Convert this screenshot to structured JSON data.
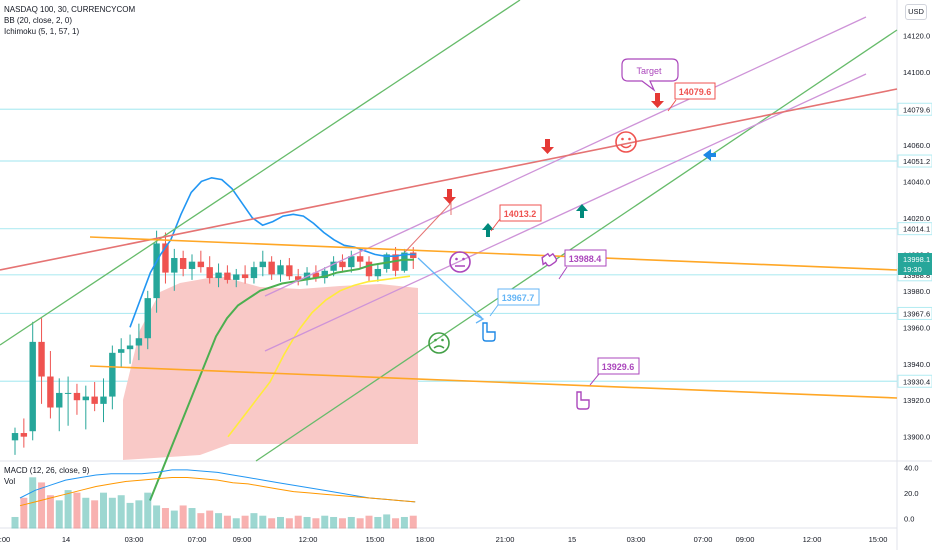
{
  "legend": {
    "symbol": "NASDAQ 100, 30, CURRENCYCOM",
    "bb": "BB (20, close, 2, 0)",
    "ichimoku": "Ichimoku (5, 1, 57, 1)",
    "macd": "MACD (12, 26, close, 9)",
    "vol": "Vol"
  },
  "currency_badge": "USD",
  "colors": {
    "up": "#26a69a",
    "down": "#ef5350",
    "cloud": "#f9c9c7",
    "bb_line": "#2196f3",
    "green_line": "#4caf50",
    "yellow_line": "#ffeb3b",
    "channel_green": "#66bb6a",
    "channel_violet": "#ce93d8",
    "red_line": "#e57373",
    "orange_line": "#ffa726",
    "price_line": "#b2ebf2"
  },
  "chart_data": {
    "type": "candlestick",
    "main_price_axis_ticks": [
      "14120.0",
      "14100.0",
      "14080.0",
      "14060.0",
      "14040.0",
      "14020.0",
      "14000.0",
      "13980.0",
      "13960.0",
      "13940.0",
      "13920.0",
      "13900.0"
    ],
    "time_axis_labels": [
      ":00",
      "14",
      "03:00",
      "07:00",
      "09:00",
      "12:00",
      "15:00",
      "18:00",
      "21:00",
      "15",
      "03:00",
      "07:00",
      "09:00",
      "12:00",
      "15:00"
    ],
    "macd_axis_ticks": [
      "40.0",
      "20.0",
      "0.0"
    ],
    "current_price": {
      "value": "13998.1",
      "countdown": "19:30"
    },
    "price_labels": [
      "14079.6",
      "14051.2",
      "14014.1",
      "13988.8",
      "13967.6",
      "13930.4"
    ],
    "horizontal_levels": [
      14079.6,
      14051.2,
      14014.1,
      13988.8,
      13967.6,
      13930.4
    ],
    "annotations": [
      {
        "text": "Target",
        "style": "callout",
        "color": "#ab47bc"
      },
      {
        "text": "14079.6",
        "color": "#ef5350"
      },
      {
        "text": "14013.2",
        "color": "#ef5350"
      },
      {
        "text": "13988.4",
        "color": "#ab47bc"
      },
      {
        "text": "13967.7",
        "color": "#64b5f6"
      },
      {
        "text": "13929.6",
        "color": "#ab47bc"
      }
    ],
    "candles": [
      {
        "o": 13898,
        "h": 13905,
        "l": 13890,
        "c": 13902
      },
      {
        "o": 13902,
        "h": 13910,
        "l": 13894,
        "c": 13900
      },
      {
        "o": 13903,
        "h": 13963,
        "l": 13898,
        "c": 13952
      },
      {
        "o": 13952,
        "h": 13965,
        "l": 13918,
        "c": 13933
      },
      {
        "o": 13933,
        "h": 13947,
        "l": 13910,
        "c": 13916
      },
      {
        "o": 13916,
        "h": 13932,
        "l": 13903,
        "c": 13924
      },
      {
        "o": 13924,
        "h": 13933,
        "l": 13906,
        "c": 13924
      },
      {
        "o": 13924,
        "h": 13929,
        "l": 13912,
        "c": 13920
      },
      {
        "o": 13920,
        "h": 13928,
        "l": 13904,
        "c": 13922
      },
      {
        "o": 13922,
        "h": 13930,
        "l": 13914,
        "c": 13918
      },
      {
        "o": 13918,
        "h": 13932,
        "l": 13908,
        "c": 13922
      },
      {
        "o": 13922,
        "h": 13950,
        "l": 13915,
        "c": 13946
      },
      {
        "o": 13946,
        "h": 13954,
        "l": 13938,
        "c": 13948
      },
      {
        "o": 13948,
        "h": 13956,
        "l": 13940,
        "c": 13950
      },
      {
        "o": 13950,
        "h": 13962,
        "l": 13942,
        "c": 13954
      },
      {
        "o": 13954,
        "h": 13980,
        "l": 13948,
        "c": 13976
      },
      {
        "o": 13976,
        "h": 14013,
        "l": 13968,
        "c": 14006
      },
      {
        "o": 14006,
        "h": 14012,
        "l": 13984,
        "c": 13990
      },
      {
        "o": 13990,
        "h": 14003,
        "l": 13980,
        "c": 13998
      },
      {
        "o": 13998,
        "h": 14002,
        "l": 13988,
        "c": 13992
      },
      {
        "o": 13992,
        "h": 14000,
        "l": 13986,
        "c": 13996
      },
      {
        "o": 13996,
        "h": 14002,
        "l": 13990,
        "c": 13993
      },
      {
        "o": 13993,
        "h": 13999,
        "l": 13984,
        "c": 13987
      },
      {
        "o": 13987,
        "h": 13995,
        "l": 13982,
        "c": 13990
      },
      {
        "o": 13990,
        "h": 13994,
        "l": 13984,
        "c": 13986
      },
      {
        "o": 13986,
        "h": 13992,
        "l": 13982,
        "c": 13989
      },
      {
        "o": 13989,
        "h": 13994,
        "l": 13984,
        "c": 13987
      },
      {
        "o": 13987,
        "h": 13996,
        "l": 13984,
        "c": 13993
      },
      {
        "o": 13993,
        "h": 14002,
        "l": 13988,
        "c": 13996
      },
      {
        "o": 13996,
        "h": 13999,
        "l": 13986,
        "c": 13989
      },
      {
        "o": 13989,
        "h": 13997,
        "l": 13985,
        "c": 13994
      },
      {
        "o": 13994,
        "h": 13998,
        "l": 13986,
        "c": 13988
      },
      {
        "o": 13988,
        "h": 13992,
        "l": 13983,
        "c": 13986
      },
      {
        "o": 13986,
        "h": 13993,
        "l": 13983,
        "c": 13990
      },
      {
        "o": 13990,
        "h": 13994,
        "l": 13985,
        "c": 13987
      },
      {
        "o": 13987,
        "h": 13993,
        "l": 13984,
        "c": 13991
      },
      {
        "o": 13991,
        "h": 13999,
        "l": 13988,
        "c": 13996
      },
      {
        "o": 13996,
        "h": 14000,
        "l": 13990,
        "c": 13993
      },
      {
        "o": 13993,
        "h": 14002,
        "l": 13990,
        "c": 13999
      },
      {
        "o": 13999,
        "h": 14003,
        "l": 13992,
        "c": 13996
      },
      {
        "o": 13996,
        "h": 13999,
        "l": 13985,
        "c": 13988
      },
      {
        "o": 13988,
        "h": 13995,
        "l": 13985,
        "c": 13992
      },
      {
        "o": 13992,
        "h": 14001,
        "l": 13990,
        "c": 14000
      },
      {
        "o": 14000,
        "h": 14004,
        "l": 13988,
        "c": 13991
      },
      {
        "o": 13991,
        "h": 14003,
        "l": 13990,
        "c": 14001
      },
      {
        "o": 14001,
        "h": 14004,
        "l": 13992,
        "c": 13998
      }
    ],
    "bollinger_upper": [
      13960,
      13975,
      13990,
      14000,
      14008,
      14022,
      14034,
      14040,
      14042,
      14041,
      14036,
      14028,
      14020,
      14016,
      14018,
      14021,
      14022,
      14021,
      14017,
      14012,
      14008,
      14005,
      14004,
      14002,
      14000,
      13999,
      13999,
      14000,
      14000
    ],
    "conversion_line": [
      13865,
      13880,
      13895,
      13910,
      13925,
      13940,
      13955,
      13965,
      13972,
      13976,
      13980,
      13982,
      13984,
      13985,
      13986,
      13987,
      13988,
      13990,
      13991,
      13992,
      13994,
      13995,
      13996,
      13997,
      13997
    ],
    "base_line": [
      13900,
      13910,
      13920,
      13930,
      13945,
      13958,
      13968,
      13975,
      13980,
      13983,
      13985,
      13986,
      13987,
      13988
    ],
    "macd_line": [
      16,
      22,
      26,
      30,
      32,
      34,
      35,
      35,
      35,
      36,
      38,
      38,
      37,
      36,
      34,
      32,
      30,
      28,
      26,
      24,
      22,
      20,
      18,
      16,
      15,
      14,
      13
    ],
    "signal_line": [
      10,
      13,
      16,
      19,
      22,
      25,
      27,
      29,
      30,
      31,
      32,
      32,
      31,
      30,
      28,
      27,
      25,
      23,
      21,
      20,
      19,
      18,
      17,
      16,
      15,
      14,
      13
    ],
    "volume": [
      9,
      24,
      40,
      36,
      26,
      22,
      30,
      28,
      24,
      22,
      28,
      24,
      26,
      20,
      22,
      28,
      18,
      16,
      14,
      18,
      16,
      12,
      14,
      12,
      10,
      8,
      10,
      12,
      10,
      8,
      9,
      8,
      10,
      9,
      8,
      10,
      9,
      8,
      9,
      8,
      10,
      9,
      11,
      8,
      9,
      10
    ]
  }
}
